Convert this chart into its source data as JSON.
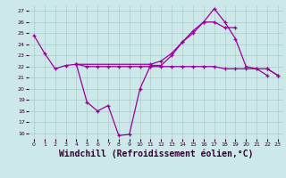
{
  "background_color": "#cce8e8",
  "grid_color": "#aacccc",
  "line_color": "#990099",
  "xlabel": "Windchill (Refroidissement éolien,°C)",
  "xlabel_fontsize": 7,
  "yticks": [
    16,
    17,
    18,
    19,
    20,
    21,
    22,
    23,
    24,
    25,
    26,
    27
  ],
  "xticks": [
    0,
    1,
    2,
    3,
    4,
    5,
    6,
    7,
    8,
    9,
    10,
    11,
    12,
    13,
    14,
    15,
    16,
    17,
    18,
    19,
    20,
    21,
    22,
    23
  ],
  "xlim": [
    -0.5,
    23.5
  ],
  "ylim": [
    15.5,
    27.5
  ],
  "series": [
    {
      "x": [
        0,
        1,
        2,
        3,
        4,
        5,
        6,
        7,
        8,
        9,
        10,
        11,
        12,
        13,
        14,
        15,
        16,
        17,
        18,
        19,
        20,
        21,
        22,
        23
      ],
      "y": [
        24.8,
        23.2,
        21.8,
        22.1,
        22.2,
        18.8,
        18.0,
        18.5,
        15.8,
        15.9,
        20.0,
        22.1,
        22.1,
        23.0,
        24.2,
        25.0,
        26.0,
        27.2,
        26.0,
        24.5,
        22.0,
        21.8,
        21.2,
        null
      ]
    },
    {
      "x": [
        4,
        11,
        12,
        13,
        14,
        15,
        16,
        17,
        18,
        19,
        20,
        21,
        22,
        23
      ],
      "y": [
        22.2,
        22.2,
        22.5,
        23.2,
        24.2,
        25.2,
        26.0,
        26.0,
        25.5,
        25.5,
        null,
        null,
        21.8,
        21.2
      ]
    },
    {
      "x": [
        4,
        5,
        6,
        7,
        8,
        9,
        10,
        11,
        12,
        13,
        14,
        15,
        16,
        17,
        18,
        19,
        20,
        21,
        22,
        23
      ],
      "y": [
        22.2,
        22.0,
        22.0,
        22.0,
        22.0,
        22.0,
        22.0,
        22.0,
        22.0,
        22.0,
        22.0,
        22.0,
        22.0,
        22.0,
        21.8,
        21.8,
        21.8,
        21.8,
        21.8,
        21.2
      ]
    }
  ]
}
